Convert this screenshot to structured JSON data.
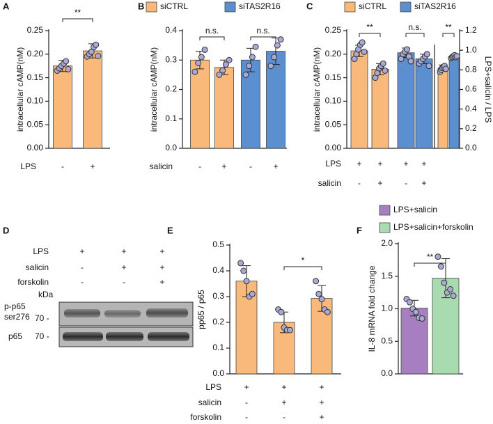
{
  "chart_data": [
    {
      "type": "bar",
      "panel": "A",
      "ylabel": "intracellular cAMP(nM)",
      "ylim": [
        0,
        0.25
      ],
      "yticks": [
        {
          "value": 0,
          "label": "0.00"
        },
        0.05,
        {
          "value": 0.1,
          "label": "0.10"
        },
        0.15,
        {
          "value": 0.2,
          "label": "0.20"
        },
        0.25
      ],
      "series": [
        {
          "color": "#f9b97a",
          "values": [
            0.175,
            0.207
          ],
          "errors": [
            0.012,
            0.015
          ]
        }
      ],
      "points": [
        [
          0.165,
          0.17,
          0.175,
          0.18,
          0.185,
          0.168
        ],
        [
          0.195,
          0.2,
          0.205,
          0.215,
          0.22,
          0.196
        ]
      ],
      "conditions": [
        {
          "name": "LPS",
          "marks": [
            "-",
            "+"
          ]
        }
      ],
      "annotations": [
        "**"
      ]
    },
    {
      "type": "bar",
      "panel": "B",
      "ylabel": "intracellular cAMP(nM)",
      "ylim": [
        0,
        0.4
      ],
      "yticks": [
        {
          "value": 0,
          "label": "0.0"
        },
        0.1,
        0.2,
        0.3,
        0.4
      ],
      "series": [
        {
          "name": "siCTRL",
          "color": "#f9b97a",
          "values": [
            0.3,
            0.275,
            null,
            null
          ],
          "errors": [
            0.03,
            0.025,
            null,
            null
          ]
        },
        {
          "name": "siTAS2R16",
          "color": "#5b8fd0",
          "values": [
            null,
            null,
            0.3,
            0.33
          ],
          "errors": [
            null,
            null,
            0.04,
            0.045
          ]
        }
      ],
      "points": [
        [
          0.26,
          0.29,
          0.31,
          0.335
        ],
        [
          0.25,
          0.265,
          0.285,
          0.3
        ],
        [
          0.25,
          0.28,
          0.31,
          0.345
        ],
        [
          0.28,
          0.31,
          0.35,
          0.37
        ]
      ],
      "conditions": [
        {
          "name": "salicin",
          "marks": [
            "-",
            "+",
            "-",
            "+"
          ]
        }
      ],
      "annotations": [
        "n.s.",
        "n.s."
      ]
    },
    {
      "type": "bar",
      "panel": "C",
      "ylabel": "intracellular cAMP(nM)",
      "y2label": "LPS+salicin / LPS",
      "ylim": [
        0,
        0.25
      ],
      "yticks": [
        {
          "value": 0,
          "label": "0.00"
        },
        0.05,
        {
          "value": 0.1,
          "label": "0.10"
        },
        0.15,
        {
          "value": 0.2,
          "label": "0.20"
        },
        0.25
      ],
      "y2lim": [
        0,
        1.2
      ],
      "y2ticks": [
        {
          "value": 0,
          "label": "0.0"
        },
        0.2,
        0.4,
        0.6,
        0.8,
        {
          "value": 1,
          "label": "1.0"
        },
        1.2
      ],
      "series": [
        {
          "name": "siCTRL",
          "color": "#f9b97a",
          "values": [
            0.207,
            0.168,
            null,
            null,
            null,
            null
          ],
          "errors": [
            0.012,
            0.012,
            null,
            null,
            null,
            null
          ]
        },
        {
          "name": "siTAS2R16",
          "color": "#5b8fd0",
          "values": [
            null,
            null,
            0.203,
            0.19,
            null,
            null
          ],
          "errors": [
            null,
            null,
            0.01,
            0.01,
            null,
            null
          ]
        },
        {
          "color": "#f9b97a",
          "axis": "y2",
          "values": [
            null,
            null,
            null,
            null,
            0.82,
            null
          ],
          "errors": [
            null,
            null,
            null,
            null,
            0.03,
            null
          ]
        },
        {
          "color": "#5b8fd0",
          "axis": "y2",
          "values": [
            null,
            null,
            null,
            null,
            null,
            0.935
          ],
          "errors": [
            null,
            null,
            null,
            null,
            null,
            0.015
          ]
        }
      ],
      "points": [
        [
          0.19,
          0.2,
          0.21,
          0.22,
          0.225,
          0.205
        ],
        [
          0.15,
          0.16,
          0.17,
          0.175,
          0.18,
          0.165
        ],
        [
          0.19,
          0.2,
          0.205,
          0.21,
          0.195,
          0.185
        ],
        [
          0.18,
          0.185,
          0.19,
          0.195,
          0.2,
          0.175
        ],
        [
          0.78,
          0.8,
          0.82,
          0.83,
          0.84,
          0.81
        ],
        [
          0.92,
          0.93,
          0.94,
          0.95,
          0.93,
          0.94
        ]
      ],
      "conditions": [
        {
          "name": "LPS",
          "marks": [
            "+",
            "+",
            "+",
            "+",
            null,
            null
          ]
        },
        {
          "name": "salicin",
          "marks": [
            "-",
            "+",
            "-",
            "+",
            null,
            null
          ]
        }
      ],
      "annotations": [
        "**",
        "n.s.",
        "**"
      ]
    },
    {
      "type": "bar",
      "panel": "E",
      "ylabel": "pp65 / p65",
      "ylim": [
        0,
        0.5
      ],
      "yticks": [
        {
          "value": 0,
          "label": "0.0"
        },
        0.1,
        0.2,
        0.3,
        0.4,
        0.5
      ],
      "series": [
        {
          "color": "#f9b97a",
          "values": [
            0.36,
            0.2,
            0.293
          ],
          "errors": [
            0.06,
            0.04,
            0.05
          ]
        }
      ],
      "points": [
        [
          0.43,
          0.4,
          0.36,
          0.3,
          0.31
        ],
        [
          0.25,
          0.24,
          0.18,
          0.17,
          0.17
        ],
        [
          0.36,
          0.31,
          0.29,
          0.25,
          0.24
        ]
      ],
      "conditions": [
        {
          "name": "LPS",
          "marks": [
            "+",
            "+",
            "+"
          ]
        },
        {
          "name": "salicin",
          "marks": [
            "-",
            "+",
            "+"
          ]
        },
        {
          "name": "forskolin",
          "marks": [
            "-",
            "-",
            "+"
          ]
        }
      ],
      "annotations": [
        "*"
      ]
    },
    {
      "type": "bar",
      "panel": "F",
      "ylabel": "IL-8 mRNA fold change",
      "ylim": [
        0,
        2
      ],
      "yticks": [
        {
          "value": 0,
          "label": "0.0"
        },
        0.5,
        {
          "value": 1,
          "label": "1.0"
        },
        1.5,
        {
          "value": 2,
          "label": "2.0"
        }
      ],
      "series": [
        {
          "name": "LPS+salicin",
          "color": "#a77fc0",
          "values": [
            1.01,
            null
          ],
          "errors": [
            0.12,
            null
          ]
        },
        {
          "name": "LPS+salicin+forskolin",
          "color": "#a8dcb0",
          "values": [
            null,
            1.47
          ],
          "errors": [
            null,
            0.3
          ]
        }
      ],
      "points": [
        [
          1.15,
          1.1,
          1.0,
          0.95,
          0.86,
          0.85
        ],
        [
          1.8,
          1.65,
          1.4,
          1.25,
          1.3,
          1.2
        ]
      ],
      "annotations": [
        "**"
      ]
    }
  ],
  "blot": {
    "panel": "D",
    "unit": "kDa",
    "conditions": [
      {
        "name": "LPS",
        "marks": [
          "+",
          "+",
          "+"
        ]
      },
      {
        "name": "salicin",
        "marks": [
          "-",
          "+",
          "+"
        ]
      },
      {
        "name": "forskolin",
        "marks": [
          "-",
          "-",
          "+"
        ]
      }
    ],
    "bands": [
      {
        "name": "p-p65",
        "sub": "ser276",
        "marker": "70 -"
      },
      {
        "name": "p65",
        "marker": "70 -"
      }
    ]
  }
}
